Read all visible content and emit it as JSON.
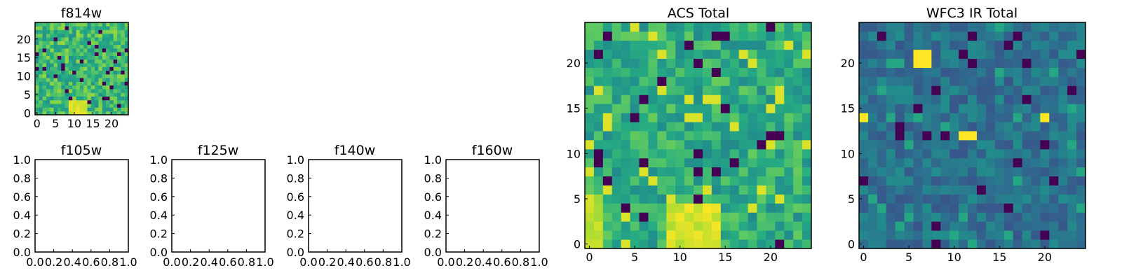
{
  "figure": {
    "colormap": "viridis",
    "empty_tick_labels": [
      "0.0",
      "0.2",
      "0.4",
      "0.6",
      "0.8",
      "1.0"
    ]
  },
  "chart_data": [
    {
      "type": "heatmap",
      "title": "f814w",
      "grid_size": [
        25,
        25
      ],
      "xlim": [
        -0.5,
        24.5
      ],
      "ylim": [
        -0.5,
        24.5
      ],
      "xticks": [
        "0",
        "5",
        "10",
        "15",
        "20"
      ],
      "yticks": [
        "0",
        "5",
        "10",
        "15",
        "20"
      ],
      "origin": "lower",
      "note_values": "Pixel-level noise image; dominant levels mostly mid-high (green-yellow) with a bright patch near x=9-13, y=0-4."
    },
    {
      "type": "heatmap",
      "title": "f105w",
      "empty": true,
      "xlim": [
        0,
        1
      ],
      "ylim": [
        0,
        1
      ],
      "xticks": [
        "0.0",
        "0.2",
        "0.4",
        "0.6",
        "0.8",
        "1.0"
      ],
      "yticks": [
        "0.0",
        "0.2",
        "0.4",
        "0.6",
        "0.8",
        "1.0"
      ]
    },
    {
      "type": "heatmap",
      "title": "f125w",
      "empty": true,
      "xlim": [
        0,
        1
      ],
      "ylim": [
        0,
        1
      ],
      "xticks": [
        "0.0",
        "0.2",
        "0.4",
        "0.6",
        "0.8",
        "1.0"
      ],
      "yticks": [
        "0.0",
        "0.2",
        "0.4",
        "0.6",
        "0.8",
        "1.0"
      ]
    },
    {
      "type": "heatmap",
      "title": "f140w",
      "empty": true,
      "xlim": [
        0,
        1
      ],
      "ylim": [
        0,
        1
      ],
      "xticks": [
        "0.0",
        "0.2",
        "0.4",
        "0.6",
        "0.8",
        "1.0"
      ],
      "yticks": [
        "0.0",
        "0.2",
        "0.4",
        "0.6",
        "0.8",
        "1.0"
      ]
    },
    {
      "type": "heatmap",
      "title": "f160w",
      "empty": true,
      "xlim": [
        0,
        1
      ],
      "ylim": [
        0,
        1
      ],
      "xticks": [
        "0.0",
        "0.2",
        "0.4",
        "0.6",
        "0.8",
        "1.0"
      ],
      "yticks": [
        "0.0",
        "0.2",
        "0.4",
        "0.6",
        "0.8",
        "1.0"
      ]
    },
    {
      "type": "heatmap",
      "title": "ACS Total",
      "grid_size": [
        25,
        25
      ],
      "xlim": [
        -0.5,
        24.5
      ],
      "ylim": [
        -0.5,
        24.5
      ],
      "xticks": [
        "0",
        "5",
        "10",
        "15",
        "20"
      ],
      "yticks": [
        "0",
        "5",
        "10",
        "15",
        "20"
      ],
      "origin": "lower"
    },
    {
      "type": "heatmap",
      "title": "WFC3 IR Total",
      "grid_size": [
        25,
        25
      ],
      "xlim": [
        -0.5,
        24.5
      ],
      "ylim": [
        -0.5,
        24.5
      ],
      "xticks": [
        "0",
        "5",
        "10",
        "15",
        "20"
      ],
      "yticks": [
        "0",
        "5",
        "10",
        "15",
        "20"
      ],
      "origin": "lower"
    }
  ]
}
